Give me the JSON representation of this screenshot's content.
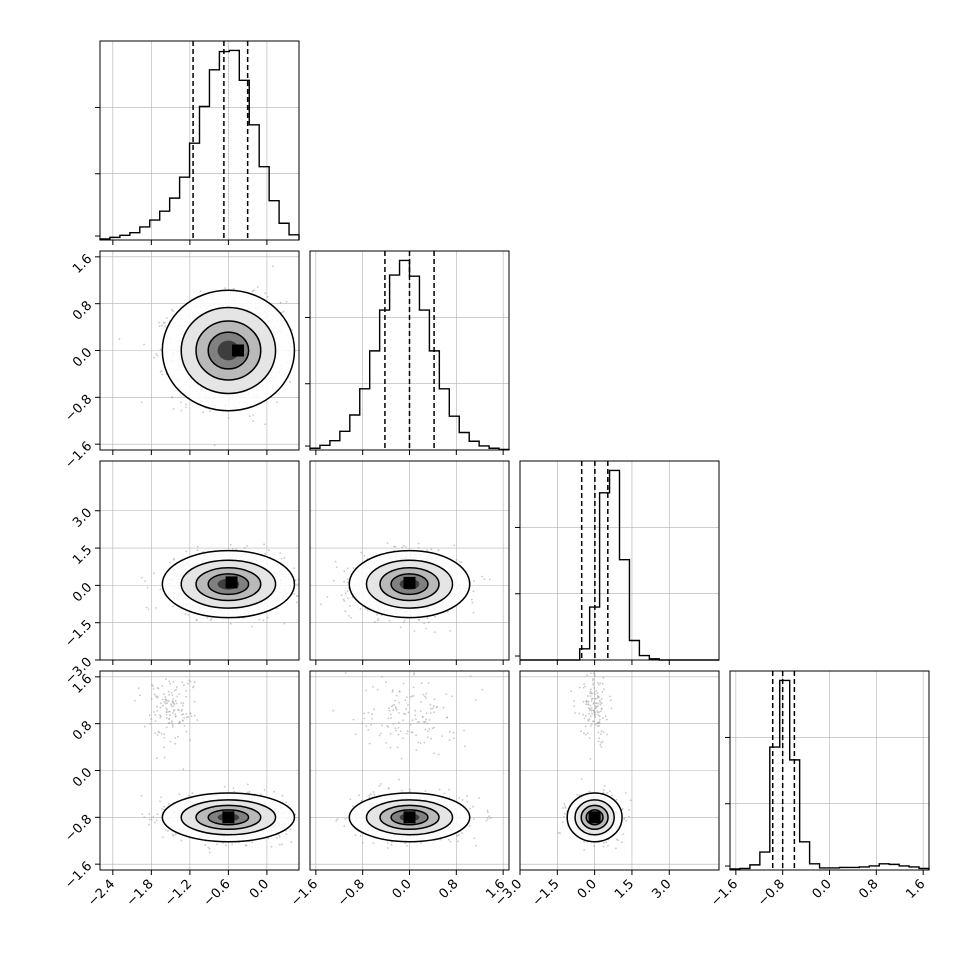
{
  "chart_data": {
    "type": "corner",
    "parameters": 4,
    "grid": true,
    "colors": {
      "line": "#000000",
      "grid": "#b0b0b0",
      "points": "#9a9a9a"
    },
    "ranges": [
      [
        -2.6,
        0.5
      ],
      [
        -1.7,
        1.7
      ],
      [
        -3.0,
        5.0
      ],
      [
        -1.7,
        1.7
      ]
    ],
    "ticks": [
      [
        "−2.4",
        "−1.8",
        "−1.2",
        "−0.6",
        "0.0"
      ],
      [
        "−1.6",
        "−0.8",
        "0.0",
        "0.8",
        "1.6"
      ],
      [
        "−3.0",
        "−1.5",
        "0.0",
        "1.5",
        "3.0"
      ],
      [
        "−1.6",
        "−0.8",
        "0.0",
        "0.8",
        "1.6"
      ]
    ],
    "tick_values": [
      [
        -2.4,
        -1.8,
        -1.2,
        -0.6,
        0.0
      ],
      [
        -1.6,
        -0.8,
        0.0,
        0.8,
        1.6
      ],
      [
        -3.0,
        -1.5,
        0.0,
        1.5,
        3.0
      ],
      [
        -1.6,
        -0.8,
        0.0,
        0.8,
        1.6
      ]
    ],
    "quantiles": [
      [
        -1.15,
        -0.67,
        -0.3
      ],
      [
        -0.42,
        0.0,
        0.42
      ],
      [
        -0.52,
        0.01,
        0.53
      ],
      [
        -0.97,
        -0.8,
        -0.6
      ]
    ],
    "histograms": [
      {
        "edges_start": -2.6,
        "bin_width": 0.155,
        "counts": [
          2,
          5,
          9,
          14,
          25,
          38,
          55,
          80,
          120,
          185,
          255,
          325,
          360,
          362,
          305,
          220,
          140,
          75,
          32,
          10
        ]
      },
      {
        "edges_start": -1.7,
        "bin_width": 0.17,
        "counts": [
          3,
          8,
          16,
          32,
          60,
          105,
          170,
          240,
          300,
          325,
          298,
          240,
          170,
          105,
          58,
          30,
          15,
          7,
          3,
          1
        ]
      },
      {
        "edges_start": -3.0,
        "bin_width": 0.4,
        "counts": [
          0,
          0,
          0,
          0,
          0,
          0,
          20,
          95,
          300,
          340,
          180,
          35,
          8,
          2,
          0,
          0,
          0,
          0,
          0,
          0
        ]
      },
      {
        "edges_start": -1.7,
        "bin_width": 0.17,
        "counts": [
          2,
          3,
          10,
          35,
          240,
          370,
          215,
          55,
          12,
          4,
          4,
          5,
          5,
          6,
          8,
          12,
          11,
          8,
          6,
          3
        ]
      }
    ],
    "pairs": [
      {
        "row": 1,
        "col": 0,
        "components": [
          {
            "weight": 1.0,
            "mx": -0.6,
            "my": 0.0,
            "sx": 0.42,
            "sy": 0.42
          }
        ],
        "mode": [
          -0.45,
          0.0
        ]
      },
      {
        "row": 2,
        "col": 0,
        "components": [
          {
            "weight": 1.0,
            "mx": -0.6,
            "my": 0.05,
            "sx": 0.42,
            "sy": 0.55
          }
        ],
        "mode": [
          -0.55,
          0.12
        ]
      },
      {
        "row": 2,
        "col": 1,
        "components": [
          {
            "weight": 1.0,
            "mx": 0.0,
            "my": 0.05,
            "sx": 0.42,
            "sy": 0.55
          }
        ],
        "mode": [
          0.0,
          0.1
        ]
      },
      {
        "row": 3,
        "col": 0,
        "components": [
          {
            "weight": 0.9,
            "mx": -0.6,
            "my": -0.8,
            "sx": 0.42,
            "sy": 0.17
          },
          {
            "weight": 0.1,
            "mx": -1.5,
            "my": 1.05,
            "sx": 0.2,
            "sy": 0.3
          }
        ],
        "mode": [
          -0.6,
          -0.8
        ]
      },
      {
        "row": 3,
        "col": 1,
        "components": [
          {
            "weight": 0.9,
            "mx": 0.0,
            "my": -0.8,
            "sx": 0.42,
            "sy": 0.17
          },
          {
            "weight": 0.1,
            "mx": 0.0,
            "my": 1.0,
            "sx": 0.4,
            "sy": 0.35
          }
        ],
        "mode": [
          0.0,
          -0.8
        ]
      },
      {
        "row": 3,
        "col": 2,
        "components": [
          {
            "weight": 0.9,
            "mx": 0.0,
            "my": -0.8,
            "sx": 0.45,
            "sy": 0.17
          },
          {
            "weight": 0.1,
            "mx": 0.0,
            "my": 1.05,
            "sx": 0.3,
            "sy": 0.3
          }
        ],
        "mode": [
          0.0,
          -0.8
        ]
      }
    ]
  }
}
